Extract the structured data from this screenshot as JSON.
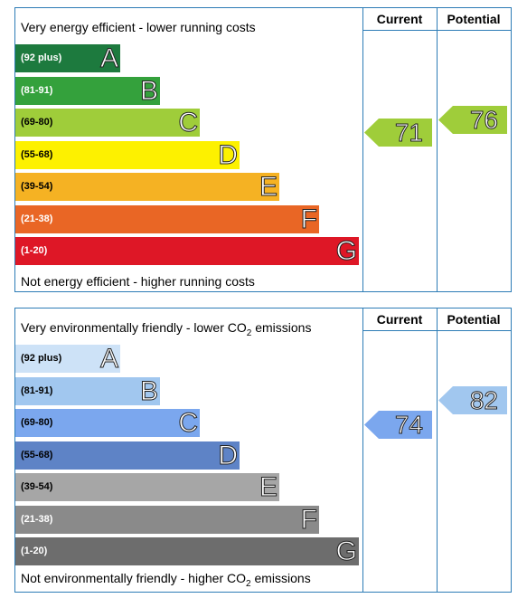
{
  "energy": {
    "top_text": "Very energy efficient - lower running costs",
    "bottom_text": "Not energy efficient - higher running costs",
    "current_label": "Current",
    "potential_label": "Potential",
    "current_value": "71",
    "potential_value": "76",
    "bands": [
      {
        "range": "(92 plus)",
        "letter": "A",
        "color": "#1d7a3e",
        "text_color": "#ffffff",
        "letter_fill": "#ffffff"
      },
      {
        "range": "(81-91)",
        "letter": "B",
        "color": "#34a13c",
        "text_color": "#ffffff",
        "letter_fill": "#ffffff"
      },
      {
        "range": "(69-80)",
        "letter": "C",
        "color": "#9fcd3a",
        "text_color": "#000000",
        "letter_fill": "#ffffff"
      },
      {
        "range": "(55-68)",
        "letter": "D",
        "color": "#fdf100",
        "text_color": "#000000",
        "letter_fill": "#ffffff"
      },
      {
        "range": "(39-54)",
        "letter": "E",
        "color": "#f5b223",
        "text_color": "#000000",
        "letter_fill": "#ffffff"
      },
      {
        "range": "(21-38)",
        "letter": "F",
        "color": "#e96625",
        "text_color": "#ffffff",
        "letter_fill": "#ffffff"
      },
      {
        "range": "(1-20)",
        "letter": "G",
        "color": "#de1726",
        "text_color": "#ffffff",
        "letter_fill": "#ffffff"
      }
    ],
    "current_color": "#9fcd3a",
    "potential_color": "#9fcd3a"
  },
  "environment": {
    "top_text_pre": "Very environmentally friendly - lower CO",
    "top_text_sub": "2",
    "top_text_post": " emissions",
    "bottom_text_pre": "Not environmentally friendly - higher CO",
    "bottom_text_sub": "2",
    "bottom_text_post": " emissions",
    "current_label": "Current",
    "potential_label": "Potential",
    "current_value": "74",
    "potential_value": "82",
    "bands": [
      {
        "range": "(92 plus)",
        "letter": "A",
        "color": "#cde2f7",
        "text_color": "#000000",
        "letter_fill": "#ffffff"
      },
      {
        "range": "(81-91)",
        "letter": "B",
        "color": "#a1c7ef",
        "text_color": "#000000",
        "letter_fill": "#ffffff"
      },
      {
        "range": "(69-80)",
        "letter": "C",
        "color": "#7ba7ee",
        "text_color": "#000000",
        "letter_fill": "#ffffff"
      },
      {
        "range": "(55-68)",
        "letter": "D",
        "color": "#5e83c6",
        "text_color": "#000000",
        "letter_fill": "#ffffff"
      },
      {
        "range": "(39-54)",
        "letter": "E",
        "color": "#a6a6a6",
        "text_color": "#000000",
        "letter_fill": "#ffffff"
      },
      {
        "range": "(21-38)",
        "letter": "F",
        "color": "#8a8a8a",
        "text_color": "#ffffff",
        "letter_fill": "#ffffff"
      },
      {
        "range": "(1-20)",
        "letter": "G",
        "color": "#6d6d6d",
        "text_color": "#ffffff",
        "letter_fill": "#ffffff"
      }
    ],
    "current_color": "#7ba7ee",
    "potential_color": "#a1c7ef"
  },
  "chart_data": [
    {
      "type": "bar",
      "categories": [
        "A",
        "B",
        "C",
        "D",
        "E",
        "F",
        "G"
      ],
      "ranges": [
        "(92 plus)",
        "(81-91)",
        "(69-80)",
        "(55-68)",
        "(39-54)",
        "(21-38)",
        "(1-20)"
      ],
      "current": 71,
      "potential": 76
    },
    {
      "type": "bar",
      "categories": [
        "A",
        "B",
        "C",
        "D",
        "E",
        "F",
        "G"
      ],
      "ranges": [
        "(92 plus)",
        "(81-91)",
        "(69-80)",
        "(55-68)",
        "(39-54)",
        "(21-38)",
        "(1-20)"
      ],
      "current": 74,
      "potential": 82
    }
  ]
}
